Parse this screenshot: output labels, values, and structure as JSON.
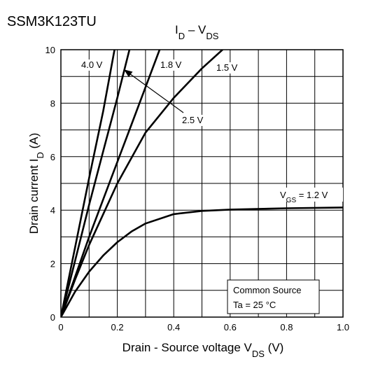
{
  "chart_data": {
    "type": "line",
    "title": "SSM3K123TU",
    "subtitle_parts": [
      "I",
      "D",
      " – V",
      "DS"
    ],
    "x_label_parts": [
      "Drain - Source voltage    V",
      "DS",
      "    (V)"
    ],
    "y_label_parts": [
      "Drain current    I",
      "D",
      "    (A)"
    ],
    "xlim": [
      0,
      1
    ],
    "ylim": [
      0,
      10
    ],
    "xticks": [
      0,
      0.2,
      0.4,
      0.6,
      0.8,
      {
        "value": 1,
        "label": "1.0"
      }
    ],
    "yticks": [
      0,
      2,
      4,
      6,
      8,
      10
    ],
    "xminor": [
      0.1,
      0.3,
      0.5,
      0.7,
      0.9
    ],
    "yminor": [
      1,
      3,
      5,
      7,
      9
    ],
    "grid": true,
    "color": "#000000",
    "series": [
      {
        "name": "4.0 V",
        "x": [
          0,
          0.05,
          0.1,
          0.15,
          0.19
        ],
        "values": [
          0,
          2.6,
          5.2,
          7.7,
          10
        ]
      },
      {
        "name": "2.5 V",
        "x": [
          0,
          0.05,
          0.1,
          0.15,
          0.2,
          0.243
        ],
        "values": [
          0,
          2.1,
          4.2,
          6.2,
          8.2,
          10
        ]
      },
      {
        "name": "1.8 V",
        "x": [
          0,
          0.05,
          0.1,
          0.15,
          0.2,
          0.25,
          0.3,
          0.35
        ],
        "values": [
          0,
          1.5,
          3,
          4.4,
          5.8,
          7.2,
          8.6,
          10
        ]
      },
      {
        "name": "1.5 V",
        "x": [
          0,
          0.05,
          0.1,
          0.2,
          0.3,
          0.4,
          0.5,
          0.573
        ],
        "values": [
          0,
          1.4,
          2.7,
          5,
          6.9,
          8.2,
          9.3,
          10
        ]
      },
      {
        "name": "1.2 V",
        "x": [
          0,
          0.05,
          0.1,
          0.15,
          0.2,
          0.25,
          0.3,
          0.4,
          0.5,
          0.6,
          0.8,
          1
        ],
        "values": [
          0,
          0.95,
          1.7,
          2.3,
          2.8,
          3.2,
          3.5,
          3.85,
          3.97,
          4.02,
          4.07,
          4.1
        ]
      }
    ],
    "vgs_label_parts": [
      "V",
      "GS",
      " = "
    ],
    "note_lines": [
      "Common Source",
      "Ta = 25 °C"
    ]
  }
}
